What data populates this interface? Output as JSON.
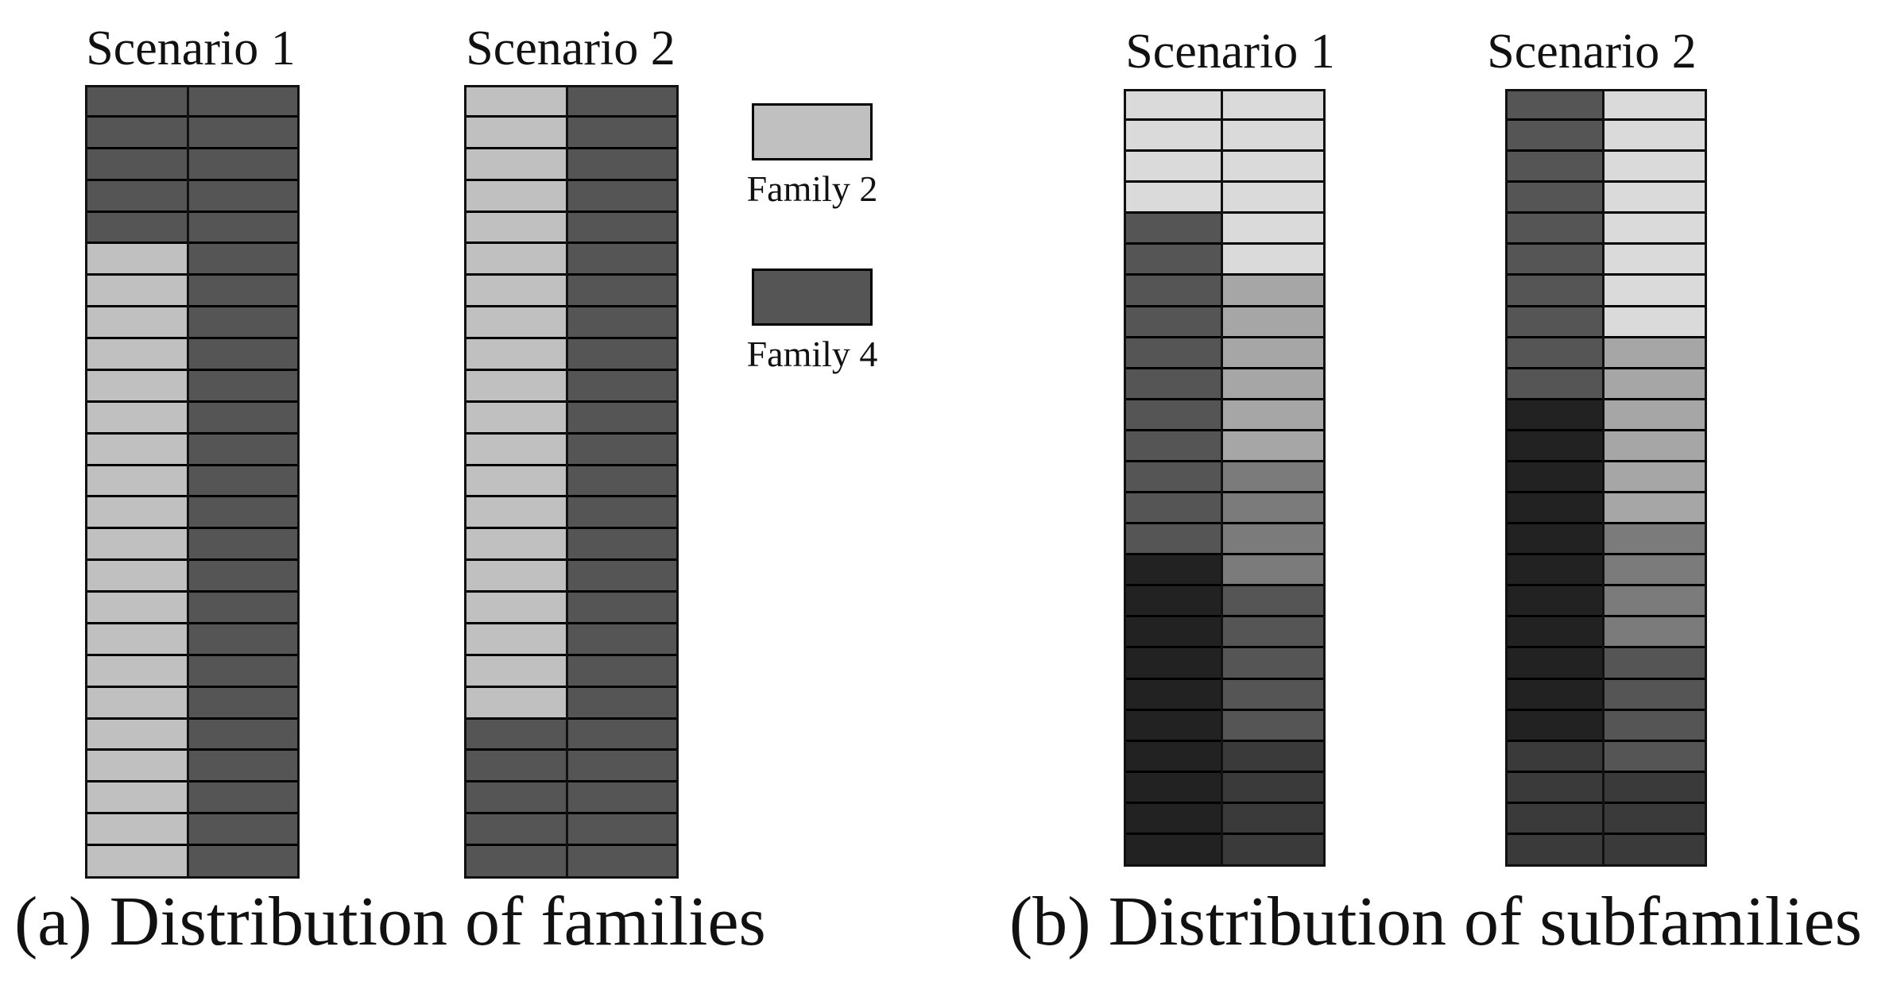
{
  "colors": {
    "family2": "#c0c0c0",
    "family4": "#555555",
    "sub_lightest": "#dadada",
    "sub_light": "#a6a6a6",
    "sub_mid": "#7b7b7b",
    "sub_dark": "#555555",
    "sub_darker": "#3a3a3a",
    "sub_darkest": "#222222",
    "line": "#000000"
  },
  "panel_a": {
    "caption": "(a) Distribution of families",
    "scenarios": [
      {
        "title": "Scenario 1",
        "columns": [
          [
            "family4",
            "family4",
            "family4",
            "family4",
            "family4",
            "family2",
            "family2",
            "family2",
            "family2",
            "family2",
            "family2",
            "family2",
            "family2",
            "family2",
            "family2",
            "family2",
            "family2",
            "family2",
            "family2",
            "family2",
            "family2",
            "family2",
            "family2",
            "family2",
            "family2"
          ],
          [
            "family4",
            "family4",
            "family4",
            "family4",
            "family4",
            "family4",
            "family4",
            "family4",
            "family4",
            "family4",
            "family4",
            "family4",
            "family4",
            "family4",
            "family4",
            "family4",
            "family4",
            "family4",
            "family4",
            "family4",
            "family4",
            "family4",
            "family4",
            "family4",
            "family4"
          ]
        ]
      },
      {
        "title": "Scenario 2",
        "columns": [
          [
            "family2",
            "family2",
            "family2",
            "family2",
            "family2",
            "family2",
            "family2",
            "family2",
            "family2",
            "family2",
            "family2",
            "family2",
            "family2",
            "family2",
            "family2",
            "family2",
            "family2",
            "family2",
            "family2",
            "family2",
            "family4",
            "family4",
            "family4",
            "family4",
            "family4"
          ],
          [
            "family4",
            "family4",
            "family4",
            "family4",
            "family4",
            "family4",
            "family4",
            "family4",
            "family4",
            "family4",
            "family4",
            "family4",
            "family4",
            "family4",
            "family4",
            "family4",
            "family4",
            "family4",
            "family4",
            "family4",
            "family4",
            "family4",
            "family4",
            "family4",
            "family4"
          ]
        ]
      }
    ],
    "legend": [
      {
        "label": "Family 2",
        "color_key": "family2"
      },
      {
        "label": "Family 4",
        "color_key": "family4"
      }
    ]
  },
  "panel_b": {
    "caption": "(b) Distribution of subfamilies",
    "scenarios": [
      {
        "title": "Scenario 1",
        "columns": [
          [
            "sub_lightest",
            "sub_lightest",
            "sub_lightest",
            "sub_lightest",
            "sub_dark",
            "sub_dark",
            "sub_dark",
            "sub_dark",
            "sub_dark",
            "sub_dark",
            "sub_dark",
            "sub_dark",
            "sub_dark",
            "sub_dark",
            "sub_dark",
            "sub_darkest",
            "sub_darkest",
            "sub_darkest",
            "sub_darkest",
            "sub_darkest",
            "sub_darkest",
            "sub_darkest",
            "sub_darkest",
            "sub_darkest",
            "sub_darkest"
          ],
          [
            "sub_lightest",
            "sub_lightest",
            "sub_lightest",
            "sub_lightest",
            "sub_lightest",
            "sub_lightest",
            "sub_light",
            "sub_light",
            "sub_light",
            "sub_light",
            "sub_light",
            "sub_light",
            "sub_mid",
            "sub_mid",
            "sub_mid",
            "sub_mid",
            "sub_dark",
            "sub_dark",
            "sub_dark",
            "sub_dark",
            "sub_dark",
            "sub_darker",
            "sub_darker",
            "sub_darker",
            "sub_darker"
          ]
        ]
      },
      {
        "title": "Scenario 2",
        "columns": [
          [
            "sub_dark",
            "sub_dark",
            "sub_dark",
            "sub_dark",
            "sub_dark",
            "sub_dark",
            "sub_dark",
            "sub_dark",
            "sub_dark",
            "sub_dark",
            "sub_darkest",
            "sub_darkest",
            "sub_darkest",
            "sub_darkest",
            "sub_darkest",
            "sub_darkest",
            "sub_darkest",
            "sub_darkest",
            "sub_darkest",
            "sub_darkest",
            "sub_darkest",
            "sub_darker",
            "sub_darker",
            "sub_darker",
            "sub_darker"
          ],
          [
            "sub_lightest",
            "sub_lightest",
            "sub_lightest",
            "sub_lightest",
            "sub_lightest",
            "sub_lightest",
            "sub_lightest",
            "sub_lightest",
            "sub_light",
            "sub_light",
            "sub_light",
            "sub_light",
            "sub_light",
            "sub_light",
            "sub_mid",
            "sub_mid",
            "sub_mid",
            "sub_mid",
            "sub_dark",
            "sub_dark",
            "sub_dark",
            "sub_dark",
            "sub_darker",
            "sub_darker",
            "sub_darker"
          ]
        ]
      }
    ]
  }
}
